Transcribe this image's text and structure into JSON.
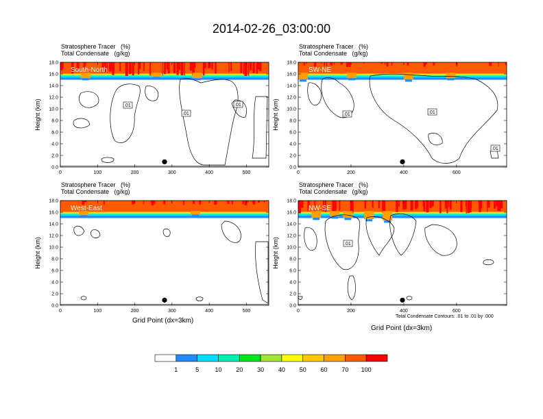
{
  "title": "2014-02-26_03:00:00",
  "chart_data": {
    "type": "heatmap",
    "colorbar": {
      "labels": [
        "1",
        "5",
        "10",
        "20",
        "30",
        "40",
        "50",
        "60",
        "70",
        "100"
      ],
      "colors": [
        "#ffffff",
        "#1e8cff",
        "#00dcff",
        "#00f0b4",
        "#00e61e",
        "#a0e632",
        "#ffff00",
        "#ffc800",
        "#ffa000",
        "#ff5a00",
        "#ff0000"
      ]
    },
    "panels": [
      {
        "label": "South-North",
        "line1": "Stratosphere Tracer   (%)",
        "line2": "Total Condensate   (g/kg)",
        "ylabel": "Height (km)",
        "yticks": [
          "0.0",
          "2.0",
          "4.0",
          "6.0",
          "8.0",
          "10.0",
          "12.0",
          "14.0",
          "16.0",
          "18.0"
        ],
        "xticks": [
          "0",
          "100",
          "200",
          "300",
          "400",
          "500"
        ],
        "xtick_vals": [
          0,
          100,
          200,
          300,
          400,
          500
        ],
        "xmax": 560,
        "contour_labels": [
          ".01",
          ".01",
          ".01"
        ],
        "marker_x": 280
      },
      {
        "label": "SW-NE",
        "line1": "Stratosphere Tracer   (%)",
        "line2": "Total Condensate   (g/kg)",
        "ylabel": "Height (km)",
        "yticks": [
          "0.0",
          "2.0",
          "4.0",
          "6.0",
          "8.0",
          "10.0",
          "12.0",
          "14.0",
          "16.0",
          "18.0"
        ],
        "xticks": [
          "0",
          "200",
          "400",
          "600"
        ],
        "xtick_vals": [
          0,
          200,
          400,
          600
        ],
        "xmax": 790,
        "contour_labels": [
          ".01",
          ".01",
          ".01"
        ],
        "marker_x": 395
      },
      {
        "label": "West-East",
        "line1": "Stratosphere Tracer   (%)",
        "line2": "Total Condensate   (g/kg)",
        "ylabel": "Height (km)",
        "yticks": [
          "0.0",
          "2.0",
          "4.0",
          "6.0",
          "8.0",
          "10.0",
          "12.0",
          "14.0",
          "16.0",
          "18.0"
        ],
        "xticks": [
          "0",
          "100",
          "200",
          "300",
          "400",
          "500"
        ],
        "xtick_vals": [
          0,
          100,
          200,
          300,
          400,
          500
        ],
        "xmax": 560,
        "contour_labels": [],
        "marker_x": 280,
        "xlabel": "Grid Point (dx=3km)"
      },
      {
        "label": "NW-SE",
        "line1": "Stratosphere Tracer   (%)",
        "line2": "Total Condensate   (g/kg)",
        "ylabel": "Height (km)",
        "yticks": [
          "0.0",
          "2.0",
          "4.0",
          "6.0",
          "8.0",
          "10.0",
          "12.0",
          "14.0",
          "16.0",
          "18.0"
        ],
        "xticks": [
          "0",
          "200",
          "400",
          "600"
        ],
        "xtick_vals": [
          0,
          200,
          400,
          600
        ],
        "xmax": 790,
        "contour_labels": [
          ".01"
        ],
        "marker_x": 395,
        "xlabel": "Grid Point (dx=3km)",
        "footnote": "Total Condensate Contours: .01 to .01 by .000"
      }
    ]
  }
}
